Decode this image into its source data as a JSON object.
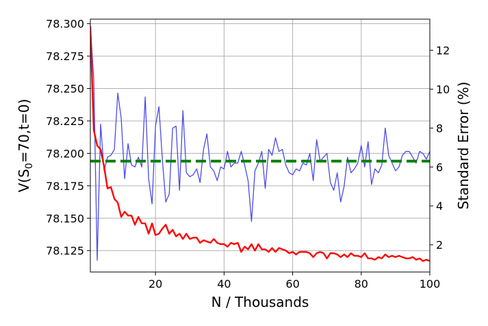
{
  "chart_data": {
    "type": "line",
    "title": "",
    "xlabel": "N / Thousands",
    "ylabel_left": "V(S0=70,t=0)",
    "ylabel_left_parts": {
      "base": "V(S",
      "sub": "0",
      "rest": "=70,t=0)"
    },
    "ylabel_right": "Standard Error (%)",
    "xlim": [
      1,
      100
    ],
    "ylim_left": [
      78.1085,
      78.3035
    ],
    "ylim_right": [
      0.6,
      13.6
    ],
    "xticks": [
      20,
      40,
      60,
      80,
      100
    ],
    "yticks_left": [
      78.125,
      78.15,
      78.175,
      78.2,
      78.225,
      78.25,
      78.275,
      78.3
    ],
    "yticks_left_labels": [
      "78.125",
      "78.150",
      "78.175",
      "78.200",
      "78.225",
      "78.250",
      "78.275",
      "78.300"
    ],
    "yticks_right": [
      2,
      4,
      6,
      8,
      10,
      12
    ],
    "grid": true,
    "colors": {
      "option_value": "#ff0000",
      "fluctuation": "#4a4ae8",
      "reference": "#008000"
    },
    "reference_line": {
      "axis": "left",
      "y": 78.194,
      "style": "dashed"
    },
    "series": [
      {
        "axis": "right",
        "values": [
          13.3,
          10.5,
          1.2,
          8.2,
          5.8,
          6.5,
          6.6,
          6.9,
          9.8,
          8.5,
          5.4,
          7.2,
          6.1,
          6.0,
          6.5,
          6.0,
          9.6,
          5.4,
          4.1,
          8.1,
          9.1,
          6.4,
          4.2,
          4.6,
          8.0,
          8.1,
          4.8,
          8.9,
          5.7,
          5.5,
          5.6,
          5.9,
          5.2,
          6.9,
          7.7,
          6.0,
          5.8,
          5.3,
          6.0,
          5.9,
          6.8,
          6.0,
          6.2,
          6.2,
          6.8,
          6.1,
          5.3,
          3.2,
          5.8,
          6.2,
          6.8,
          4.9,
          6.9,
          6.6,
          7.5,
          6.8,
          6.9,
          6.1,
          5.7,
          5.6,
          5.9,
          5.8,
          6.2,
          6.1,
          6.7,
          5.3,
          7.4,
          6.3,
          6.5,
          6.7,
          5.2,
          4.8,
          5.7,
          4.2,
          5.0,
          6.5,
          5.7,
          5.9,
          6.2,
          7.1,
          6.0,
          7.3,
          5.1,
          5.9,
          5.7,
          6.1,
          8.0,
          6.6,
          6.2,
          5.8,
          6.0,
          6.6,
          6.8,
          6.8,
          6.5,
          6.2,
          6.8,
          6.7,
          6.4,
          6.8
        ]
      },
      {
        "axis": "left",
        "values": [
          78.298,
          78.218,
          78.206,
          78.203,
          78.19,
          78.173,
          78.174,
          78.165,
          78.162,
          78.151,
          78.155,
          78.152,
          78.152,
          78.145,
          78.151,
          78.146,
          78.146,
          78.138,
          78.146,
          78.137,
          78.138,
          78.142,
          78.145,
          78.138,
          78.141,
          78.136,
          78.138,
          78.134,
          78.138,
          78.134,
          78.135,
          78.135,
          78.131,
          78.133,
          78.132,
          78.131,
          78.134,
          78.131,
          78.13,
          78.13,
          78.128,
          78.131,
          78.13,
          78.131,
          78.124,
          78.128,
          78.126,
          78.13,
          78.125,
          78.13,
          78.126,
          78.126,
          78.124,
          78.127,
          78.124,
          78.127,
          78.126,
          78.125,
          78.123,
          78.124,
          78.122,
          78.124,
          78.124,
          78.124,
          78.123,
          78.12,
          78.123,
          78.124,
          78.123,
          78.119,
          78.123,
          78.123,
          78.122,
          78.12,
          78.122,
          78.12,
          78.123,
          78.121,
          78.121,
          78.12,
          78.123,
          78.119,
          78.119,
          78.118,
          78.12,
          78.119,
          78.122,
          78.12,
          78.121,
          78.12,
          78.121,
          78.12,
          78.119,
          78.119,
          78.12,
          78.118,
          78.119,
          78.117,
          78.118,
          78.117
        ]
      }
    ]
  }
}
